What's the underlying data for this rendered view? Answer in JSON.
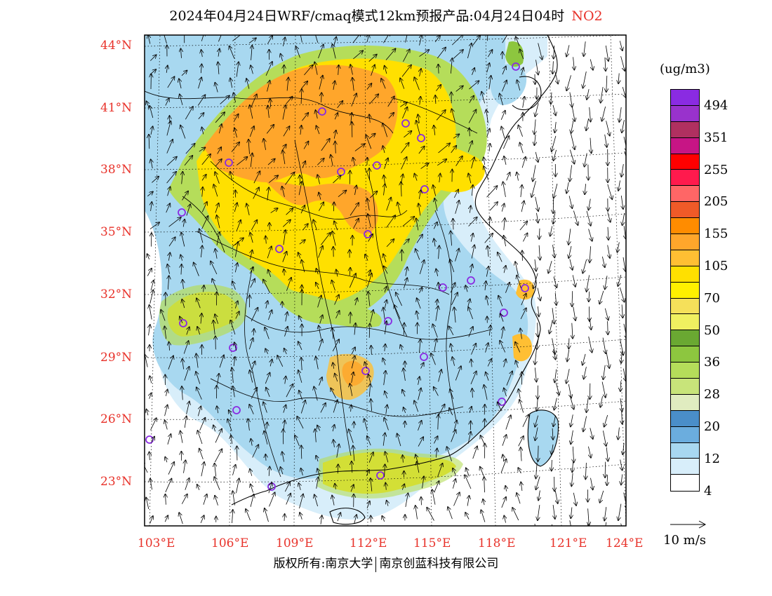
{
  "title": {
    "text": "2024年04月24日WRF/cmaq模式12km预报产品:04月24日04时",
    "pollutant": "NO2",
    "pollutant_color": "#e8322a"
  },
  "map": {
    "lat_labels": [
      "44°N",
      "41°N",
      "38°N",
      "35°N",
      "32°N",
      "29°N",
      "26°N",
      "23°N"
    ],
    "lon_labels": [
      "103°E",
      "106°E",
      "109°E",
      "112°E",
      "115°E",
      "118°E",
      "121°E",
      "124°E"
    ],
    "label_color": "#e8322a",
    "city_marker_color": "#8a2be2",
    "coastline_color": "#000000",
    "border_color": "#000000"
  },
  "legend": {
    "unit": "(ug/m3)",
    "colors": [
      "#8a2be2",
      "#9932cc",
      "#b03060",
      "#c71585",
      "#ff0000",
      "#ff1a4d",
      "#ff6666",
      "#f05a28",
      "#ff8c00",
      "#ffa62b",
      "#ffbf33",
      "#ffe000",
      "#fff000",
      "#f5e05a",
      "#f0f060",
      "#6aa832",
      "#8dc63f",
      "#b5dd5a",
      "#c8e47a",
      "#e0ecc0",
      "#4a8ec9",
      "#6badde",
      "#a8d8f0",
      "#d8eefa",
      "#ffffff"
    ],
    "labels": [
      "494",
      "351",
      "255",
      "205",
      "155",
      "105",
      "70",
      "50",
      "36",
      "28",
      "20",
      "12",
      "4"
    ]
  },
  "wind_scale": {
    "label": "10 m/s"
  },
  "credit": {
    "left": "版权所有:南京大学",
    "right": "南京创蓝科技有限公司"
  }
}
